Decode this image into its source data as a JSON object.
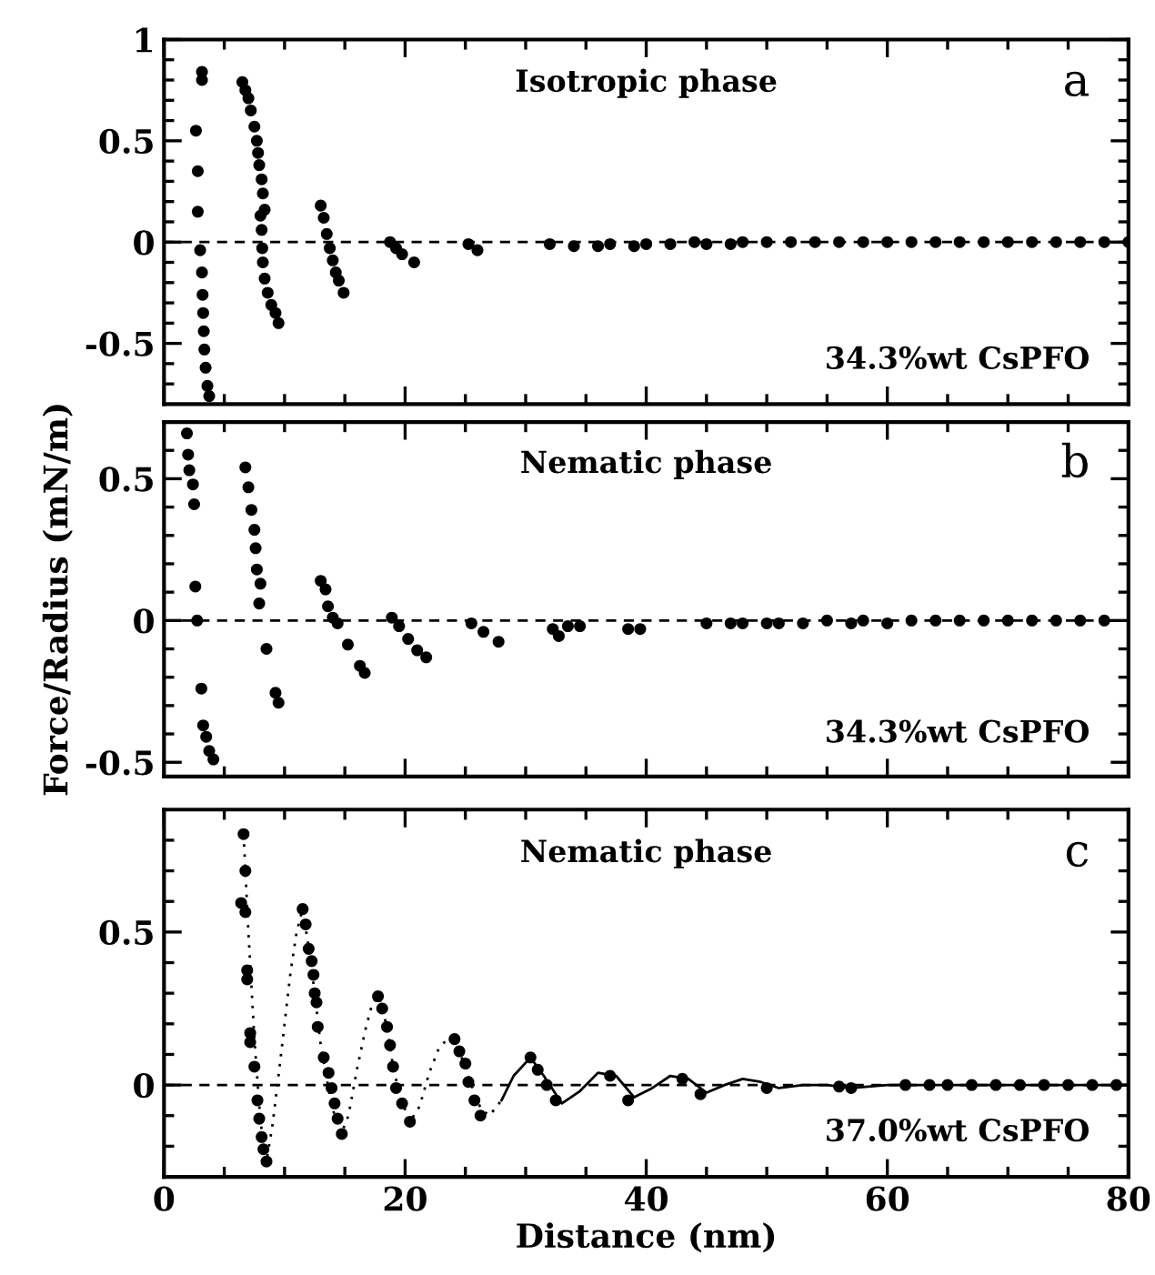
{
  "chart_data": [
    {
      "type": "scatter",
      "xlim": [
        0,
        80
      ],
      "ylim": [
        -0.8,
        1
      ],
      "tick_labels": "y",
      "marker": "circle",
      "grid": false,
      "xticks": [
        0,
        {
          "value": 5,
          "label": null
        },
        {
          "value": 10,
          "label": null
        },
        {
          "value": 15,
          "label": null
        },
        20,
        {
          "value": 25,
          "label": null
        },
        {
          "value": 30,
          "label": null
        },
        {
          "value": 35,
          "label": null
        },
        40,
        {
          "value": 45,
          "label": null
        },
        {
          "value": 50,
          "label": null
        },
        {
          "value": 55,
          "label": null
        },
        60,
        {
          "value": 65,
          "label": null
        },
        {
          "value": 70,
          "label": null
        },
        {
          "value": 75,
          "label": null
        },
        80
      ],
      "yticks": [
        {
          "value": -0.7,
          "label": null
        },
        {
          "value": -0.6,
          "label": null
        },
        -0.5,
        {
          "value": -0.4,
          "label": null
        },
        {
          "value": -0.3,
          "label": null
        },
        {
          "value": -0.2,
          "label": null
        },
        {
          "value": -0.1,
          "label": null
        },
        0,
        {
          "value": 0.1,
          "label": null
        },
        {
          "value": 0.2,
          "label": null
        },
        {
          "value": 0.3,
          "label": null
        },
        {
          "value": 0.4,
          "label": null
        },
        0.5,
        {
          "value": 0.6,
          "label": null
        },
        {
          "value": 0.7,
          "label": null
        },
        {
          "value": 0.8,
          "label": null
        },
        {
          "value": 0.9,
          "label": null
        },
        1
      ],
      "ref_lines": [
        {
          "axis": "y",
          "value": 0,
          "line_style": "dashed",
          "color": "#000000"
        }
      ],
      "annotations": [
        "Isotropic phase",
        "a",
        "34.3%wt CsPFO"
      ],
      "series": [
        {
          "color": "#000000",
          "x": [
            3.15,
            3.15,
            2.65,
            2.8,
            2.8,
            3.0,
            3.15,
            3.2,
            3.25,
            3.3,
            3.35,
            3.45,
            3.6,
            3.75,
            6.5,
            6.75,
            7.0,
            7.2,
            7.5,
            7.7,
            7.8,
            7.9,
            8.1,
            8.2,
            8.35,
            8.0,
            8.1,
            8.15,
            8.2,
            8.35,
            8.6,
            8.9,
            9.25,
            9.5,
            13.0,
            13.25,
            13.5,
            13.75,
            14.0,
            14.25,
            14.5,
            14.9,
            18.75,
            19.25,
            19.75,
            20.75,
            25.25,
            26.0,
            32.0,
            34,
            36,
            37,
            39,
            40,
            42,
            44,
            45,
            47,
            48,
            50,
            52,
            54,
            56,
            58,
            60,
            62,
            64,
            66,
            68,
            70,
            72,
            74,
            76,
            78,
            80
          ],
          "values": [
            0.84,
            0.8,
            0.55,
            0.35,
            0.15,
            -0.04,
            -0.15,
            -0.26,
            -0.35,
            -0.44,
            -0.53,
            -0.62,
            -0.71,
            -0.76,
            0.79,
            0.75,
            0.71,
            0.65,
            0.57,
            0.5,
            0.44,
            0.38,
            0.31,
            0.24,
            0.16,
            0.13,
            0.06,
            -0.03,
            -0.1,
            -0.18,
            -0.25,
            -0.31,
            -0.35,
            -0.4,
            0.18,
            0.12,
            0.04,
            -0.03,
            -0.09,
            -0.15,
            -0.19,
            -0.25,
            0.0,
            -0.03,
            -0.06,
            -0.1,
            -0.01,
            -0.04,
            -0.01,
            -0.02,
            -0.02,
            -0.01,
            -0.02,
            -0.01,
            -0.01,
            0.0,
            -0.01,
            -0.01,
            0.0,
            0.0,
            0.0,
            0.0,
            0.0,
            0.0,
            0.0,
            0.0,
            0.0,
            0.0,
            0.0,
            0.0,
            0.0,
            0.0,
            0.0,
            0.0,
            0.0
          ]
        }
      ]
    },
    {
      "type": "scatter",
      "xlim": [
        0,
        80
      ],
      "ylim": [
        -0.55,
        0.7
      ],
      "tick_labels": "y",
      "marker": "circle",
      "grid": false,
      "ylabel": "Force/Radius (mN/m)",
      "xticks": [
        0,
        {
          "value": 5,
          "label": null
        },
        {
          "value": 10,
          "label": null
        },
        {
          "value": 15,
          "label": null
        },
        20,
        {
          "value": 25,
          "label": null
        },
        {
          "value": 30,
          "label": null
        },
        {
          "value": 35,
          "label": null
        },
        40,
        {
          "value": 45,
          "label": null
        },
        {
          "value": 50,
          "label": null
        },
        {
          "value": 55,
          "label": null
        },
        60,
        {
          "value": 65,
          "label": null
        },
        {
          "value": 70,
          "label": null
        },
        {
          "value": 75,
          "label": null
        },
        80
      ],
      "yticks": [
        -0.5,
        {
          "value": -0.4,
          "label": null
        },
        {
          "value": -0.3,
          "label": null
        },
        {
          "value": -0.2,
          "label": null
        },
        {
          "value": -0.1,
          "label": null
        },
        0,
        {
          "value": 0.1,
          "label": null
        },
        {
          "value": 0.2,
          "label": null
        },
        {
          "value": 0.3,
          "label": null
        },
        {
          "value": 0.4,
          "label": null
        },
        0.5,
        {
          "value": 0.6,
          "label": null
        }
      ],
      "ref_lines": [
        {
          "axis": "y",
          "value": 0,
          "line_style": "dashed",
          "color": "#000000"
        }
      ],
      "annotations": [
        "Nematic phase",
        "b",
        "34.3%wt CsPFO"
      ],
      "series": [
        {
          "color": "#000000",
          "x": [
            1.9,
            2.0,
            2.1,
            2.4,
            2.5,
            2.6,
            2.75,
            3.1,
            3.25,
            3.5,
            3.75,
            4.1,
            6.75,
            7.0,
            7.25,
            7.5,
            7.6,
            7.7,
            8.0,
            7.9,
            8.5,
            9.25,
            9.5,
            13.0,
            13.4,
            13.6,
            14.0,
            14.4,
            15.25,
            16.25,
            16.65,
            18.9,
            19.5,
            20.25,
            21.0,
            21.75,
            25.5,
            26.5,
            27.75,
            32.25,
            32.75,
            33.5,
            34.5,
            38.5,
            39.5,
            45,
            47,
            48,
            50,
            51,
            53,
            55,
            57,
            58,
            60,
            62,
            64,
            66,
            68,
            70,
            72,
            74,
            76,
            78
          ],
          "values": [
            0.66,
            0.585,
            0.53,
            0.48,
            0.41,
            0.12,
            0.0,
            -0.24,
            -0.37,
            -0.41,
            -0.46,
            -0.49,
            0.54,
            0.47,
            0.39,
            0.32,
            0.255,
            0.18,
            0.13,
            0.06,
            -0.1,
            -0.255,
            -0.29,
            0.14,
            0.11,
            0.05,
            0.01,
            -0.01,
            -0.085,
            -0.16,
            -0.185,
            0.01,
            -0.02,
            -0.065,
            -0.105,
            -0.13,
            -0.01,
            -0.04,
            -0.075,
            -0.03,
            -0.055,
            -0.02,
            -0.02,
            -0.03,
            -0.03,
            -0.01,
            -0.01,
            -0.01,
            -0.01,
            -0.01,
            -0.01,
            0.0,
            -0.01,
            0.0,
            -0.01,
            0.0,
            0.0,
            0.0,
            0.0,
            0.0,
            0.0,
            0.0,
            0.0,
            0.0
          ]
        }
      ]
    },
    {
      "type": "scatter",
      "xlim": [
        0,
        80
      ],
      "ylim": [
        -0.3,
        0.9
      ],
      "marker": "circle",
      "grid": false,
      "xlabel": "Distance (nm)",
      "xticks": [
        0,
        {
          "value": 5,
          "label": null
        },
        {
          "value": 10,
          "label": null
        },
        {
          "value": 15,
          "label": null
        },
        20,
        {
          "value": 25,
          "label": null
        },
        {
          "value": 30,
          "label": null
        },
        {
          "value": 35,
          "label": null
        },
        40,
        {
          "value": 45,
          "label": null
        },
        {
          "value": 50,
          "label": null
        },
        {
          "value": 55,
          "label": null
        },
        60,
        {
          "value": 65,
          "label": null
        },
        {
          "value": 70,
          "label": null
        },
        {
          "value": 75,
          "label": null
        },
        80
      ],
      "yticks": [
        {
          "value": -0.2,
          "label": null
        },
        {
          "value": -0.1,
          "label": null
        },
        0,
        {
          "value": 0.1,
          "label": null
        },
        {
          "value": 0.2,
          "label": null
        },
        {
          "value": 0.3,
          "label": null
        },
        {
          "value": 0.4,
          "label": null
        },
        0.5,
        {
          "value": 0.6,
          "label": null
        },
        {
          "value": 0.7,
          "label": null
        },
        {
          "value": 0.8,
          "label": null
        }
      ],
      "ref_lines": [
        {
          "axis": "y",
          "value": 0,
          "line_style": "dashed",
          "color": "#000000"
        }
      ],
      "annotations": [
        "Nematic phase",
        "c",
        "37.0%wt CsPFO"
      ],
      "series": [
        {
          "color": "#000000",
          "x": [
            6.6,
            6.75,
            6.4,
            6.75,
            6.9,
            6.9,
            7.15,
            7.15,
            7.5,
            7.75,
            7.9,
            8.1,
            8.25,
            8.5,
            11.5,
            11.75,
            12.0,
            12.25,
            12.4,
            12.5,
            12.65,
            12.75,
            13.25,
            13.65,
            13.9,
            14.15,
            14.4,
            14.75,
            17.75,
            18.1,
            18.5,
            18.75,
            19.0,
            19.25,
            19.75,
            20.4,
            24.1,
            24.5,
            25.0,
            25.25,
            25.75,
            26.25,
            30.4,
            31.0,
            31.75,
            32.5,
            37.0,
            38.5,
            43.0,
            44.5,
            50.0,
            56.0,
            57.0,
            61.5,
            63.5,
            65,
            67,
            69,
            71,
            73,
            75,
            77,
            79
          ],
          "values": [
            0.82,
            0.7,
            0.595,
            0.565,
            0.375,
            0.345,
            0.17,
            0.14,
            0.06,
            -0.05,
            -0.11,
            -0.17,
            -0.21,
            -0.25,
            0.575,
            0.525,
            0.445,
            0.405,
            0.36,
            0.3,
            0.27,
            0.19,
            0.09,
            0.04,
            -0.01,
            -0.06,
            -0.11,
            -0.16,
            0.29,
            0.25,
            0.19,
            0.13,
            0.06,
            -0.01,
            -0.06,
            -0.12,
            0.15,
            0.11,
            0.07,
            0.01,
            -0.05,
            -0.1,
            0.09,
            0.05,
            0.0,
            -0.05,
            0.03,
            -0.05,
            0.02,
            -0.03,
            -0.01,
            -0.005,
            -0.01,
            0.0,
            0.0,
            0.0,
            0.0,
            0.0,
            0.0,
            0.0,
            0.0,
            0.0,
            0.0
          ]
        },
        {
          "type": "line",
          "line_style": "dotted",
          "marker": "none",
          "color": "#000000",
          "x": [
            6.6,
            7.0,
            7.5,
            8.0,
            8.5,
            9.0,
            9.5,
            10.0,
            10.5,
            11.0,
            11.5,
            12.0,
            12.5,
            13.0,
            13.5,
            14.0,
            14.7,
            15.3,
            16.0,
            16.7,
            17.3,
            17.8,
            18.5,
            19.0,
            19.6,
            20.4,
            21.2,
            22.0,
            22.8,
            23.5,
            24.1,
            24.8,
            25.5,
            26.3,
            27.0,
            28.0
          ],
          "values": [
            0.82,
            0.5,
            0.15,
            -0.12,
            -0.25,
            -0.13,
            0.03,
            0.2,
            0.37,
            0.5,
            0.575,
            0.45,
            0.3,
            0.13,
            0.02,
            -0.08,
            -0.16,
            -0.1,
            0.05,
            0.18,
            0.27,
            0.29,
            0.19,
            0.06,
            -0.04,
            -0.12,
            -0.07,
            0.04,
            0.12,
            0.15,
            0.14,
            0.08,
            0.0,
            -0.08,
            -0.1,
            -0.05
          ]
        },
        {
          "type": "line",
          "line_style": "solid",
          "marker": "none",
          "color": "#000000",
          "x": [
            28,
            29,
            30.4,
            31.5,
            33,
            34.5,
            36,
            37.5,
            39,
            40.5,
            42,
            43.5,
            45,
            46.5,
            48,
            49.5,
            51,
            53,
            55,
            57,
            60,
            65,
            70,
            75,
            80
          ],
          "values": [
            -0.05,
            0.03,
            0.09,
            0.03,
            -0.06,
            -0.02,
            0.04,
            0.03,
            -0.04,
            -0.01,
            0.03,
            0.02,
            -0.025,
            0.0,
            0.02,
            0.01,
            -0.01,
            0.0,
            0.0,
            -0.01,
            0.0,
            0.0,
            0.0,
            0.0,
            0.0
          ]
        }
      ]
    }
  ]
}
